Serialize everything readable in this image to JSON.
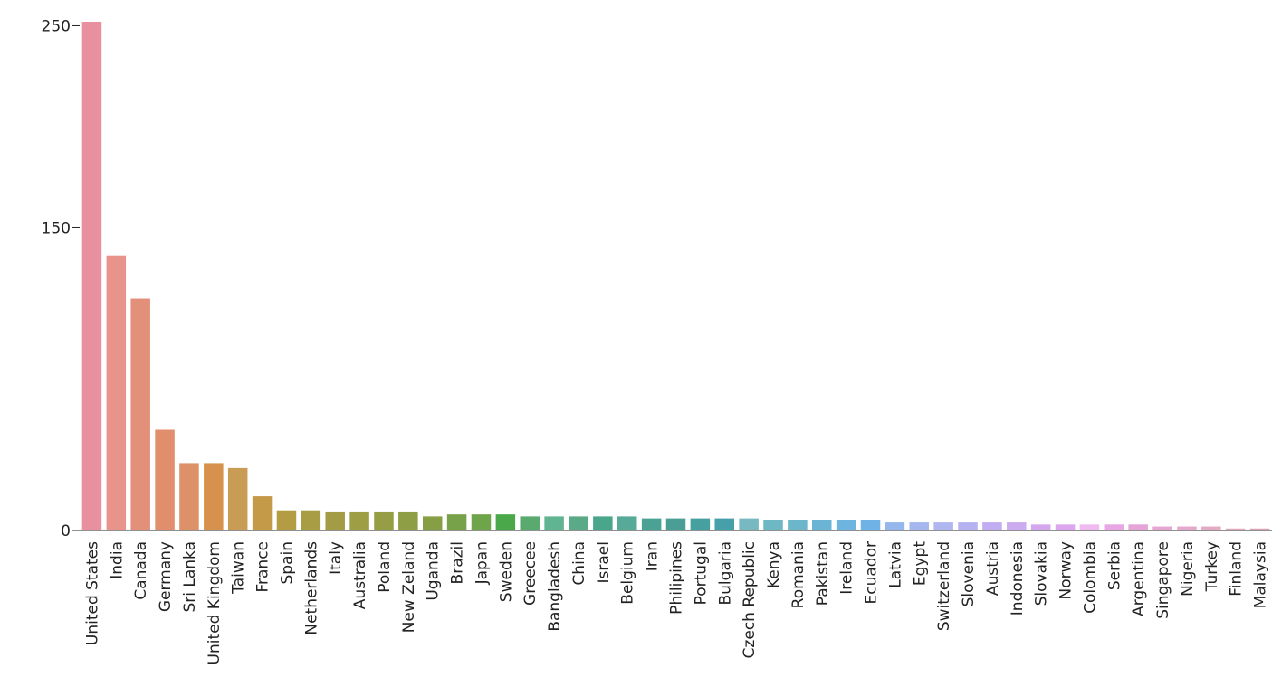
{
  "chart_data": {
    "type": "bar",
    "title": "",
    "xlabel": "",
    "ylabel": "",
    "ylim": [
      0,
      252
    ],
    "yticks": [
      0,
      150,
      250
    ],
    "grid": false,
    "legend": "none",
    "categories": [
      "United States",
      "India",
      "Canada",
      "Germany",
      "Sri Lanka",
      "United Kingdom",
      "Taiwan",
      "France",
      "Spain",
      "Netherlands",
      "Italy",
      "Australia",
      "Poland",
      "New Zeland",
      "Uganda",
      "Brazil",
      "Japan",
      "Sweden",
      "Greecee",
      "Bangladesh",
      "China",
      "Israel",
      "Belgium",
      "Iran",
      "Philipines",
      "Portugal",
      "Bulgaria",
      "Czech Republic",
      "Kenya",
      "Romania",
      "Pakistan",
      "Ireland",
      "Ecuador",
      "Latvia",
      "Egypt",
      "Switzerland",
      "Slovenia",
      "Austria",
      "Indonesia",
      "Slovakia",
      "Norway",
      "Colombia",
      "Serbia",
      "Argentina",
      "Singapore",
      "Nigeria",
      "Turkey",
      "Finland",
      "Malaysia"
    ],
    "values": [
      252,
      136,
      115,
      50,
      33,
      33,
      31,
      17,
      10,
      10,
      9,
      9,
      9,
      9,
      7,
      8,
      8,
      8,
      7,
      7,
      7,
      7,
      7,
      6,
      6,
      6,
      6,
      6,
      5,
      5,
      5,
      5,
      5,
      4,
      4,
      4,
      4,
      4,
      4,
      3,
      3,
      3,
      3,
      3,
      2,
      2,
      2,
      1,
      1
    ],
    "colors": [
      "#e8909e",
      "#e8948a",
      "#e3907a",
      "#e08e6c",
      "#dc9168",
      "#d6924c",
      "#c89c54",
      "#c49a48",
      "#b39c44",
      "#a89c44",
      "#a39c44",
      "#9e9e44",
      "#969e44",
      "#8e9e44",
      "#869e44",
      "#78a24a",
      "#6ea44a",
      "#4aa84a",
      "#5aaa70",
      "#60b490",
      "#5aaa88",
      "#4aa68a",
      "#58aa98",
      "#4aa294",
      "#4a9e96",
      "#46a0a0",
      "#45a0aa",
      "#78b8c0",
      "#6eb8c6",
      "#6cb6cc",
      "#6ab4d6",
      "#6eb4e0",
      "#6eb2e6",
      "#96b6ee",
      "#a6b6ee",
      "#b0b6f0",
      "#b6b2f2",
      "#c2acf2",
      "#ccacf0",
      "#d4a6ee",
      "#dca6ee",
      "#eebaf0",
      "#e8a6e4",
      "#e4a4d8",
      "#e6a6d4",
      "#e6a8cc",
      "#e4aac4",
      "#e4a8be",
      "#d6a4b4"
    ]
  }
}
